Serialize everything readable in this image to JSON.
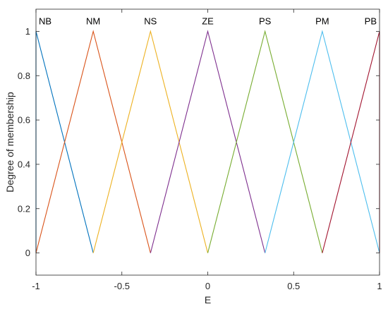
{
  "chart_data": {
    "type": "line",
    "xlabel": "E",
    "ylabel": "Degree of membership",
    "xlim": [
      -1,
      1
    ],
    "ylim": [
      -0.1,
      1.1
    ],
    "xticks": [
      -1,
      -0.5,
      0,
      0.5,
      1
    ],
    "xtick_labels": [
      "-1",
      "-0.5",
      "0",
      "0.5",
      "1"
    ],
    "yticks": [
      0,
      0.2,
      0.4,
      0.6,
      0.8,
      1
    ],
    "ytick_labels": [
      "0",
      "0.2",
      "0.4",
      "0.6",
      "0.8",
      "1"
    ],
    "grid": false,
    "series": [
      {
        "name": "NB",
        "color": "#0072BD",
        "x": [
          -1,
          -1,
          -0.6667
        ],
        "y": [
          0,
          1,
          0
        ]
      },
      {
        "name": "NM",
        "color": "#D95319",
        "x": [
          -1,
          -0.6667,
          -0.3333
        ],
        "y": [
          0,
          1,
          0
        ]
      },
      {
        "name": "NS",
        "color": "#EDB120",
        "x": [
          -0.6667,
          -0.3333,
          0
        ],
        "y": [
          0,
          1,
          0
        ]
      },
      {
        "name": "ZE",
        "color": "#7E2F8E",
        "x": [
          -0.3333,
          0,
          0.3333
        ],
        "y": [
          0,
          1,
          0
        ]
      },
      {
        "name": "PS",
        "color": "#77AC30",
        "x": [
          0,
          0.3333,
          0.6667
        ],
        "y": [
          0,
          1,
          0
        ]
      },
      {
        "name": "PM",
        "color": "#4DBEEE",
        "x": [
          0.3333,
          0.6667,
          1
        ],
        "y": [
          0,
          1,
          0
        ]
      },
      {
        "name": "PB",
        "color": "#A2142F",
        "x": [
          0.6667,
          1,
          1
        ],
        "y": [
          0,
          1,
          0
        ]
      }
    ],
    "annotations": [
      {
        "text": "NB",
        "x": -1,
        "y": 1
      },
      {
        "text": "NM",
        "x": -0.6667,
        "y": 1
      },
      {
        "text": "NS",
        "x": -0.3333,
        "y": 1
      },
      {
        "text": "ZE",
        "x": 0,
        "y": 1
      },
      {
        "text": "PS",
        "x": 0.3333,
        "y": 1
      },
      {
        "text": "PM",
        "x": 0.6667,
        "y": 1
      },
      {
        "text": "PB",
        "x": 1,
        "y": 1
      }
    ]
  }
}
